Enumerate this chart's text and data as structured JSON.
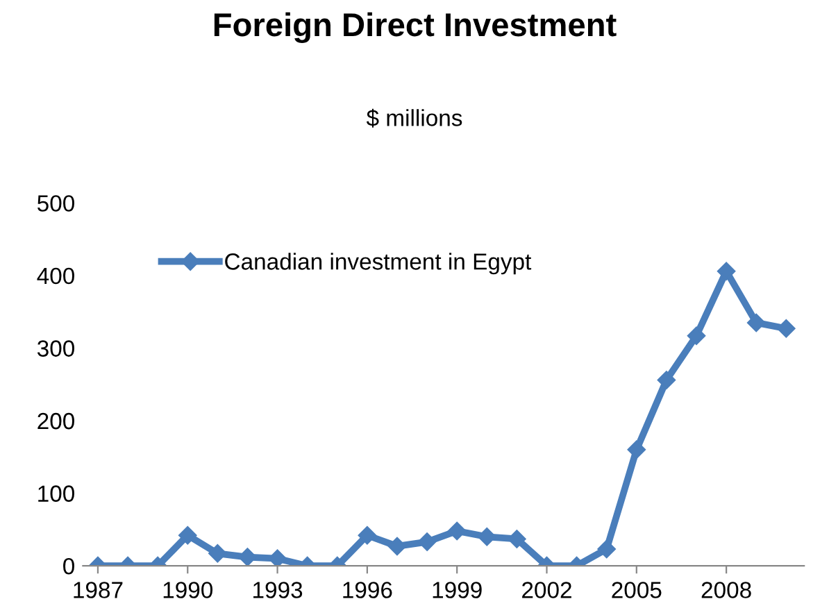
{
  "chart_data": {
    "type": "line",
    "title": "Foreign Direct Investment",
    "subtitle": "$ millions",
    "x": [
      1987,
      1988,
      1989,
      1990,
      1991,
      1992,
      1993,
      1994,
      1995,
      1996,
      1997,
      1998,
      1999,
      2000,
      2001,
      2002,
      2003,
      2004,
      2005,
      2006,
      2007,
      2008,
      2009,
      2010
    ],
    "series": [
      {
        "name": "Canadian investment in Egypt",
        "color": "#4a7ebb",
        "values": [
          0,
          0,
          0,
          42,
          17,
          12,
          10,
          0,
          0,
          42,
          27,
          33,
          48,
          40,
          37,
          0,
          0,
          23,
          160,
          256,
          317,
          406,
          335,
          327
        ]
      }
    ],
    "xlim": [
      1986.5,
      2010.6
    ],
    "xticks": [
      1987,
      1990,
      1993,
      1996,
      1999,
      2002,
      2005,
      2008
    ],
    "ylim": [
      0,
      500
    ],
    "yticks": [
      0,
      100,
      200,
      300,
      400,
      500
    ],
    "grid": false,
    "legend": "top left",
    "marker": "diamond",
    "line_style": "solid"
  }
}
